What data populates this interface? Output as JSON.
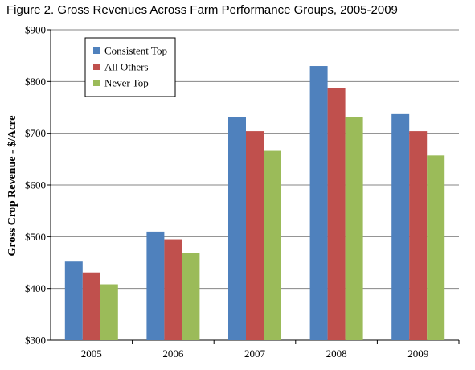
{
  "chart_data": {
    "type": "bar",
    "title": "Figure 2. Gross Revenues Across Farm Performance Groups, 2005-2009",
    "xlabel": "",
    "ylabel": "Gross Crop Revenue - $/Acre",
    "categories": [
      "2005",
      "2006",
      "2007",
      "2008",
      "2009"
    ],
    "ylim": [
      300,
      900
    ],
    "yticks": [
      300,
      400,
      500,
      600,
      700,
      800,
      900
    ],
    "ytick_labels": [
      "$300",
      "$400",
      "$500",
      "$600",
      "$700",
      "$800",
      "$900"
    ],
    "grid": "horizontal",
    "legend_position": "top-left",
    "series": [
      {
        "name": "Consistent Top",
        "color": "#4f81bd",
        "values": [
          452,
          510,
          732,
          830,
          737
        ]
      },
      {
        "name": "All Others",
        "color": "#c0504d",
        "values": [
          431,
          495,
          704,
          787,
          704
        ]
      },
      {
        "name": "Never Top",
        "color": "#9bbb59",
        "values": [
          408,
          469,
          666,
          731,
          657
        ]
      }
    ]
  }
}
